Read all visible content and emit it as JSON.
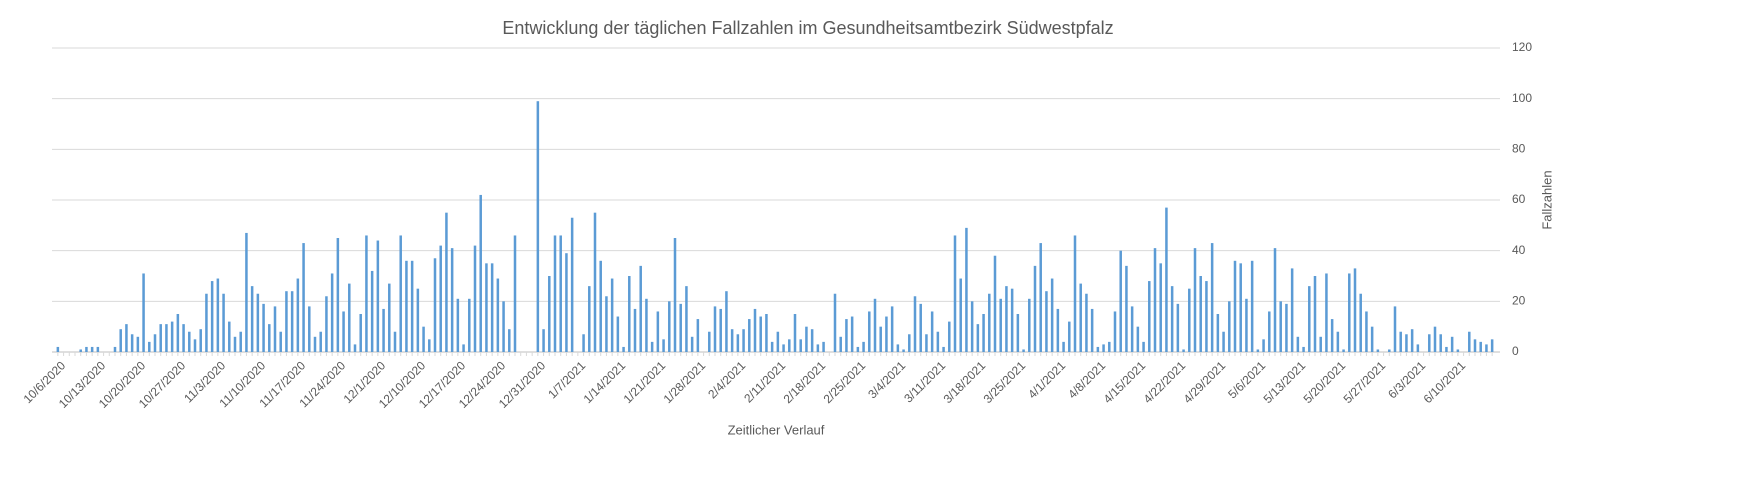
{
  "chart_data": {
    "type": "bar",
    "title": "Entwicklung der täglichen Fallzahlen im Gesundheitsamtbezirk Südwestpfalz",
    "x_label": "Zeitlicher Verlauf",
    "y_label": "Fallzahlen",
    "color": "#5b9bd5",
    "grid": true,
    "y_axis_side": "right",
    "ylim": [
      0,
      120
    ],
    "yticks": [
      0,
      20,
      40,
      60,
      80,
      100,
      120
    ],
    "categories": [
      "10/6/2020",
      null,
      null,
      null,
      null,
      null,
      null,
      "10/13/2020",
      null,
      null,
      null,
      null,
      null,
      null,
      "10/20/2020",
      null,
      null,
      null,
      null,
      null,
      null,
      "10/27/2020",
      null,
      null,
      null,
      null,
      null,
      null,
      "11/3/2020",
      null,
      null,
      null,
      null,
      null,
      null,
      "11/10/2020",
      null,
      null,
      null,
      null,
      null,
      null,
      "11/17/2020",
      null,
      null,
      null,
      null,
      null,
      null,
      "11/24/2020",
      null,
      null,
      null,
      null,
      null,
      null,
      "12/1/2020",
      null,
      null,
      null,
      null,
      null,
      null,
      "12/10/2020",
      null,
      null,
      null,
      null,
      null,
      null,
      "12/17/2020",
      null,
      null,
      null,
      null,
      null,
      null,
      "12/24/2020",
      null,
      null,
      null,
      null,
      null,
      null,
      "12/31/2020",
      null,
      null,
      null,
      null,
      null,
      null,
      "1/7/2021",
      null,
      null,
      null,
      null,
      null,
      null,
      "1/14/2021",
      null,
      null,
      null,
      null,
      null,
      null,
      "1/21/2021",
      null,
      null,
      null,
      null,
      null,
      null,
      "1/28/2021",
      null,
      null,
      null,
      null,
      null,
      null,
      "2/4/2021",
      null,
      null,
      null,
      null,
      null,
      null,
      "2/11/2021",
      null,
      null,
      null,
      null,
      null,
      null,
      "2/18/2021",
      null,
      null,
      null,
      null,
      null,
      null,
      "2/25/2021",
      null,
      null,
      null,
      null,
      null,
      null,
      "3/4/2021",
      null,
      null,
      null,
      null,
      null,
      null,
      "3/11/2021",
      null,
      null,
      null,
      null,
      null,
      null,
      "3/18/2021",
      null,
      null,
      null,
      null,
      null,
      null,
      "3/25/2021",
      null,
      null,
      null,
      null,
      null,
      null,
      "4/1/2021",
      null,
      null,
      null,
      null,
      null,
      null,
      "4/8/2021",
      null,
      null,
      null,
      null,
      null,
      null,
      "4/15/2021",
      null,
      null,
      null,
      null,
      null,
      null,
      "4/22/2021",
      null,
      null,
      null,
      null,
      null,
      null,
      "4/29/2021",
      null,
      null,
      null,
      null,
      null,
      null,
      "5/6/2021",
      null,
      null,
      null,
      null,
      null,
      null,
      "5/13/2021",
      null,
      null,
      null,
      null,
      null,
      null,
      "5/20/2021",
      null,
      null,
      null,
      null,
      null,
      null,
      "5/27/2021",
      null,
      null,
      null,
      null,
      null,
      null,
      "6/3/2021",
      null,
      null,
      null,
      null,
      null,
      null,
      "6/10/2021",
      null,
      null,
      null,
      null,
      null,
      null
    ],
    "values": [
      2,
      0,
      0,
      0,
      1,
      2,
      2,
      2,
      0,
      0,
      2,
      9,
      11,
      7,
      6,
      31,
      4,
      7,
      11,
      11,
      12,
      15,
      11,
      8,
      5,
      9,
      23,
      28,
      29,
      23,
      12,
      6,
      8,
      47,
      26,
      23,
      19,
      11,
      18,
      8,
      24,
      24,
      29,
      43,
      18,
      6,
      8,
      22,
      31,
      45,
      16,
      27,
      3,
      15,
      46,
      32,
      44,
      17,
      27,
      8,
      46,
      36,
      36,
      25,
      10,
      5,
      37,
      42,
      55,
      41,
      21,
      3,
      21,
      42,
      62,
      35,
      35,
      29,
      20,
      9,
      46,
      0,
      0,
      0,
      99,
      9,
      30,
      46,
      46,
      39,
      53,
      0,
      7,
      26,
      55,
      36,
      22,
      29,
      14,
      2,
      30,
      17,
      34,
      21,
      4,
      16,
      5,
      20,
      45,
      19,
      26,
      6,
      13,
      0,
      8,
      18,
      17,
      24,
      9,
      7,
      9,
      13,
      17,
      14,
      15,
      4,
      8,
      3,
      5,
      15,
      5,
      10,
      9,
      3,
      4,
      0,
      23,
      6,
      13,
      14,
      2,
      4,
      16,
      21,
      10,
      14,
      18,
      3,
      1,
      7,
      22,
      19,
      7,
      16,
      8,
      2,
      12,
      46,
      29,
      49,
      20,
      11,
      15,
      23,
      38,
      21,
      26,
      25,
      15,
      1,
      21,
      34,
      43,
      24,
      29,
      17,
      4,
      12,
      46,
      27,
      23,
      17,
      2,
      3,
      4,
      16,
      40,
      34,
      18,
      10,
      4,
      28,
      41,
      35,
      57,
      26,
      19,
      1,
      25,
      41,
      30,
      28,
      43,
      15,
      8,
      20,
      36,
      35,
      21,
      36,
      1,
      5,
      16,
      41,
      20,
      19,
      33,
      6,
      2,
      26,
      30,
      6,
      31,
      13,
      8,
      1,
      31,
      33,
      23,
      16,
      10,
      1,
      0,
      1,
      18,
      8,
      7,
      9,
      3,
      0,
      7,
      10,
      7,
      2,
      6,
      1,
      0,
      8,
      5,
      4,
      3,
      5
    ]
  }
}
